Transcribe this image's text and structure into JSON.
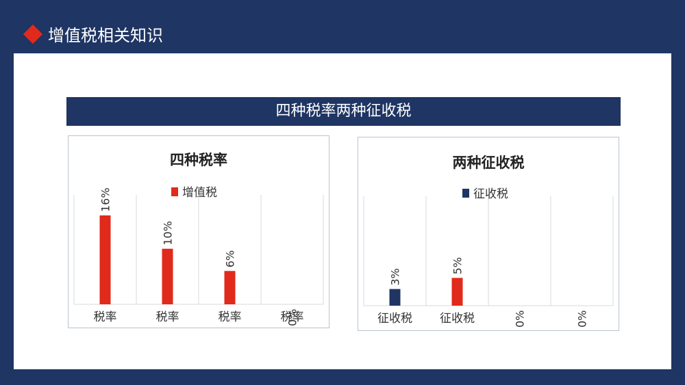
{
  "header": {
    "title": "增值税相关知识"
  },
  "banner": {
    "text": "四种税率两种征收税"
  },
  "colors": {
    "navy": "#1f3563",
    "red": "#e02a1b"
  },
  "chart_data": [
    {
      "type": "bar",
      "title": "四种税率",
      "legend": "增值税",
      "categories": [
        "税率",
        "税率",
        "税率",
        "税率"
      ],
      "values": [
        16,
        10,
        6,
        0
      ],
      "value_labels": [
        "16%",
        "10%",
        "6%",
        "0%"
      ],
      "bar_colors": [
        "#e02a1b",
        "#e02a1b",
        "#e02a1b",
        "#e02a1b"
      ],
      "ylim": [
        0,
        16
      ]
    },
    {
      "type": "bar",
      "title": "两种征收税",
      "legend": "征收税",
      "categories": [
        "征收税",
        "征收税",
        "",
        ""
      ],
      "values": [
        3,
        5,
        0,
        0
      ],
      "value_labels": [
        "3%",
        "5%",
        "0%",
        "0%"
      ],
      "bar_colors": [
        "#1f3563",
        "#e02a1b",
        "#1f3563",
        "#1f3563"
      ],
      "ylim": [
        0,
        16
      ]
    }
  ]
}
